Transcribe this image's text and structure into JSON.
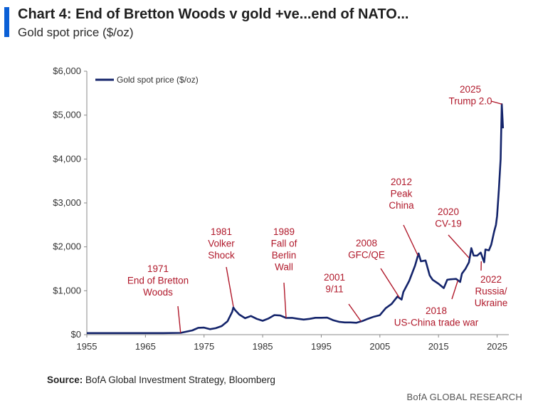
{
  "header": {
    "title": "Chart 4: End of Bretton Woods v gold +ve...end of NATO...",
    "subtitle": "Gold spot price ($/oz)"
  },
  "footer": {
    "source_label": "Source:",
    "source_text": " BofA Global Investment Strategy, Bloomberg",
    "brand": "BofA GLOBAL RESEARCH"
  },
  "colors": {
    "line": "#14246b",
    "annotation": "#b0182a",
    "accent": "#0a5fd6"
  },
  "chart_data": {
    "type": "line",
    "xlim": [
      1955,
      2027
    ],
    "ylim": [
      0,
      6000
    ],
    "x_ticks": [
      1955,
      1965,
      1975,
      1985,
      1995,
      2005,
      2015,
      2025
    ],
    "y_ticks": [
      0,
      1000,
      2000,
      3000,
      4000,
      5000,
      6000
    ],
    "y_tick_labels": [
      "$0",
      "$1,000",
      "$2,000",
      "$3,000",
      "$4,000",
      "$5,000",
      "$6,000"
    ],
    "legend": {
      "position": "top-left",
      "label": "Gold spot price ($/oz)"
    },
    "grid": false,
    "series": [
      {
        "name": "Gold spot price ($/oz)",
        "x": [
          1955,
          1968,
          1971,
          1973,
          1974,
          1975,
          1976,
          1977,
          1978,
          1979,
          1979.8,
          1980,
          1980.3,
          1981,
          1982,
          1983,
          1984,
          1985,
          1986,
          1987,
          1988,
          1989,
          1990,
          1991,
          1992,
          1993,
          1994,
          1995,
          1996,
          1997,
          1998,
          1999,
          2000,
          2001,
          2002,
          2003,
          2004,
          2005,
          2006,
          2007,
          2008,
          2008.7,
          2009,
          2010,
          2011,
          2011.6,
          2012,
          2012.8,
          2013.5,
          2014,
          2015,
          2015.9,
          2016.5,
          2017,
          2018,
          2018.7,
          2019,
          2019.6,
          2020.2,
          2020.6,
          2021,
          2021.6,
          2022.2,
          2022.8,
          2023,
          2023.6,
          2024,
          2024.5,
          2024.8,
          2025,
          2025.3,
          2025.6,
          2025.8,
          2026
        ],
        "y": [
          35,
          35,
          40,
          97,
          155,
          160,
          125,
          148,
          195,
          305,
          520,
          620,
          560,
          460,
          375,
          425,
          360,
          317,
          368,
          446,
          437,
          381,
          383,
          362,
          344,
          360,
          384,
          384,
          388,
          331,
          294,
          279,
          279,
          271,
          310,
          364,
          410,
          445,
          604,
          700,
          870,
          800,
          972,
          1225,
          1572,
          1850,
          1670,
          1690,
          1350,
          1250,
          1160,
          1060,
          1250,
          1260,
          1270,
          1200,
          1390,
          1500,
          1650,
          1970,
          1800,
          1800,
          1870,
          1650,
          1940,
          1920,
          2050,
          2350,
          2500,
          2700,
          3300,
          4000,
          5250,
          4700
        ]
      }
    ],
    "annotations": [
      {
        "lines": [
          "1971",
          "End of Bretton",
          "Woods"
        ],
        "x": 1971,
        "y": 40
      },
      {
        "lines": [
          "1981",
          "Volker",
          "Shock"
        ],
        "x": 1980,
        "y": 640
      },
      {
        "lines": [
          "1989",
          "Fall of",
          "Berlin",
          "Wall"
        ],
        "x": 1989,
        "y": 381
      },
      {
        "lines": [
          "2001",
          "9/11"
        ],
        "x": 2001.8,
        "y": 300
      },
      {
        "lines": [
          "2008",
          "GFC/QE"
        ],
        "x": 2008.3,
        "y": 850
      },
      {
        "lines": [
          "2012",
          "Peak",
          "China"
        ],
        "x": 2011.5,
        "y": 1800
      },
      {
        "lines": [
          "2020",
          "CV-19"
        ],
        "x": 2020.2,
        "y": 1750
      },
      {
        "lines": [
          "2025",
          "Trump 2.0"
        ],
        "x": 2025.8,
        "y": 5250
      },
      {
        "lines": [
          "2018",
          "US-China trade war"
        ],
        "x": 2018.3,
        "y": 1230
      },
      {
        "lines": [
          "2022",
          "Russia/",
          "Ukraine"
        ],
        "x": 2022.3,
        "y": 1670
      }
    ]
  }
}
